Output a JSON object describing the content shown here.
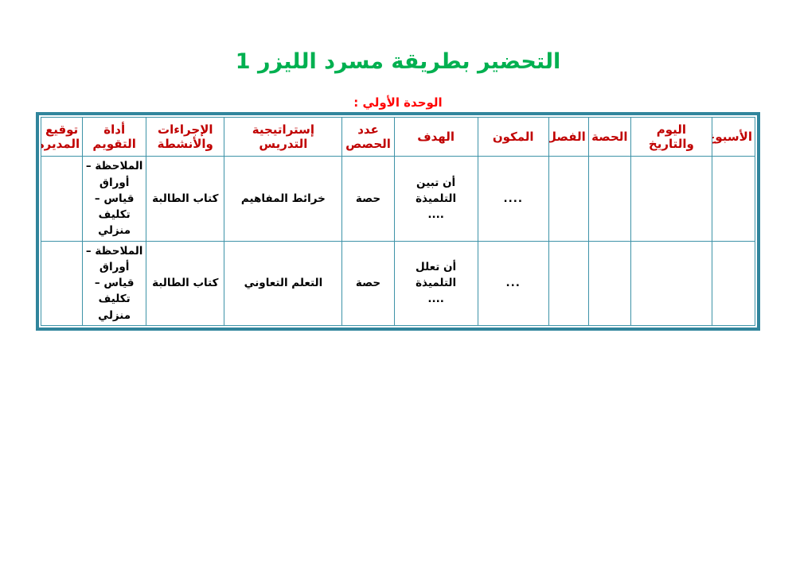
{
  "page": {
    "title": "التحضير بطريقة مسرد الليزر 1",
    "subtitle": "الوحدة الأولي :"
  },
  "colors": {
    "title_green": "#00B050",
    "subtitle_red": "#FF0000",
    "header_red": "#C00000",
    "evaluation_red": "#FF0000",
    "procedures_green": "#1E7D3C",
    "component_blue": "#2222CC",
    "border_teal": "#31859C",
    "grid_teal": "#3E93A8"
  },
  "table": {
    "headers": {
      "week": "الأسبوع",
      "day_date": "اليوم والتاريخ",
      "period": "الحصة",
      "class": "الفصل",
      "component": "المكون",
      "objective": "الهدف",
      "num_periods": "عدد الحصص",
      "strategy": "إستراتيجية التدريس",
      "procedures": "الإجراءات والأنشطة",
      "evaluation": "أداة التقويم",
      "signature": "توقيع المديرة"
    },
    "rows": [
      {
        "week": "",
        "day_date": "",
        "period": "",
        "class": "",
        "component": "....",
        "objective": "أن تبين التلميذة\n....",
        "num_periods": "حصة",
        "strategy": "خرائط المفاهيم",
        "procedures": "كتاب الطالبة",
        "evaluation": "الملاحظة – أوراق قياس – تكليف منزلي",
        "signature": ""
      },
      {
        "week": "",
        "day_date": "",
        "period": "",
        "class": "",
        "component": "...",
        "objective": "أن تعلل التلميذة\n....",
        "num_periods": "حصة",
        "strategy": "التعلم التعاوني",
        "procedures": "كتاب الطالبة",
        "evaluation": "الملاحظة – أوراق قياس – تكليف منزلي",
        "signature": ""
      }
    ]
  }
}
